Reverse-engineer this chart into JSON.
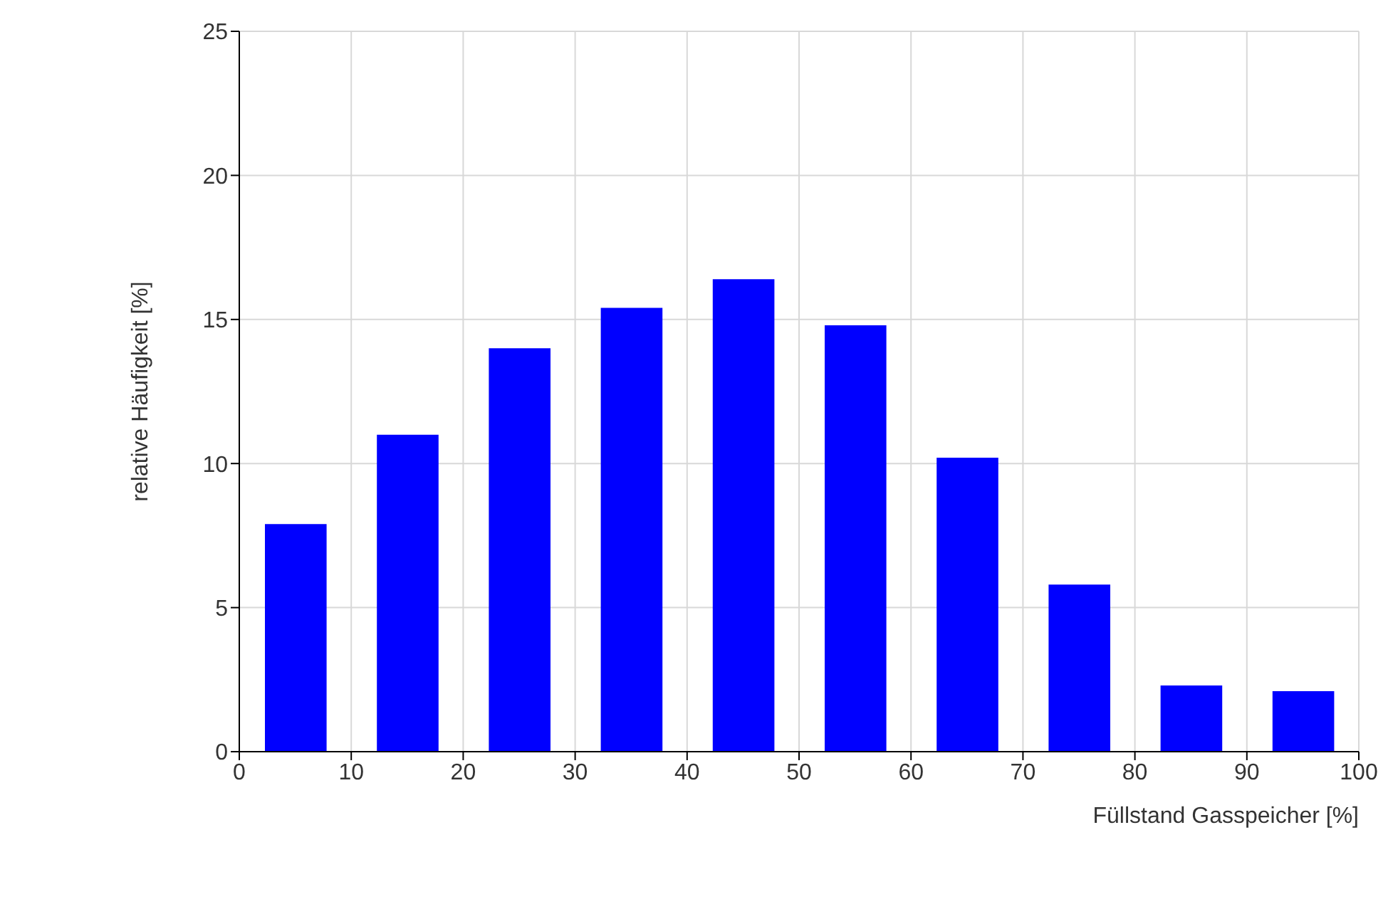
{
  "chart_data": {
    "type": "bar",
    "xlabel": "Füllstand Gasspeicher [%]",
    "ylabel": "relative Häufigkeit [%]",
    "x": [
      5,
      15,
      25,
      35,
      45,
      55,
      65,
      75,
      85,
      95
    ],
    "values": [
      7.9,
      11.0,
      14.0,
      15.4,
      16.4,
      14.8,
      10.2,
      5.8,
      2.3,
      2.1
    ],
    "color": "#0000ff",
    "xlim": [
      0,
      100
    ],
    "xticks": [
      0,
      10,
      20,
      30,
      40,
      50,
      60,
      70,
      80,
      90,
      100
    ],
    "ylim": [
      0,
      25
    ],
    "yticks": [
      0,
      5,
      10,
      15,
      20,
      25
    ],
    "grid": true
  }
}
